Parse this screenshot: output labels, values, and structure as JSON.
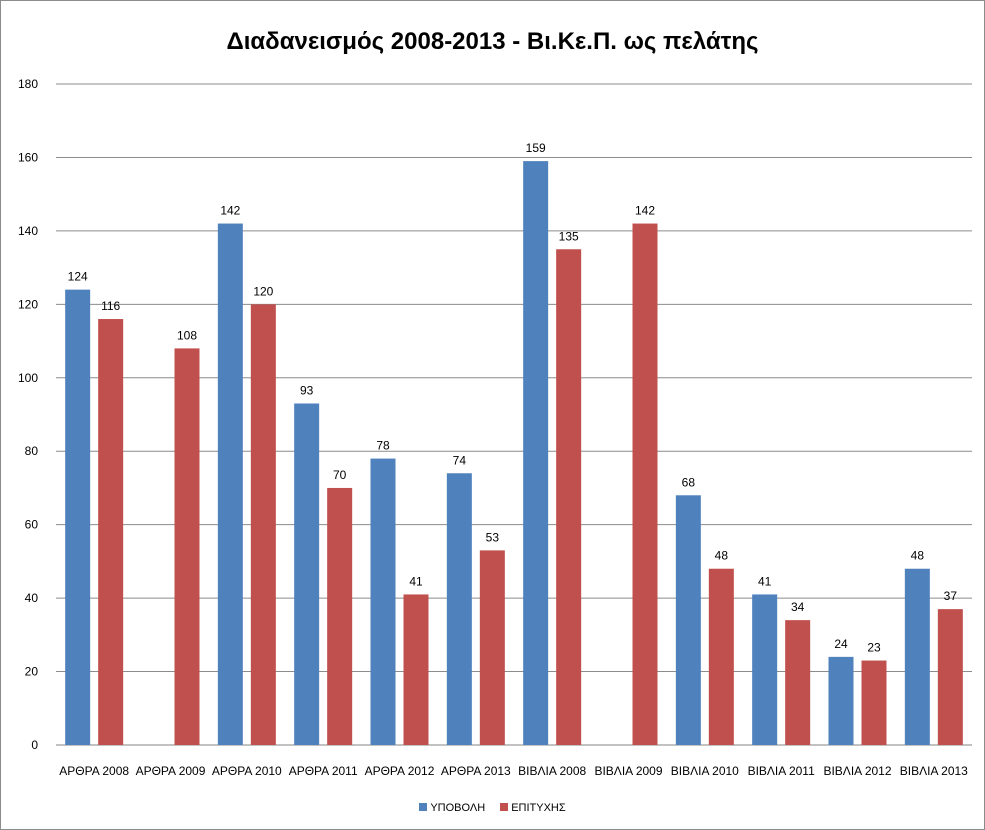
{
  "chart_data": {
    "type": "bar",
    "title": "Διαδανεισμός 2008-2013 - Βι.Κε.Π. ως πελάτης",
    "categories": [
      "ΑΡΘΡΑ 2008",
      "ΑΡΘΡΑ 2009",
      "ΑΡΘΡΑ 2010",
      "ΑΡΘΡΑ 2011",
      "ΑΡΘΡΑ 2012",
      "ΑΡΘΡΑ 2013",
      "ΒΙΒΛΙΑ 2008",
      "ΒΙΒΛΙΑ 2009",
      "ΒΙΒΛΙΑ 2010",
      "ΒΙΒΛΙΑ 2011",
      "ΒΙΒΛΙΑ 2012",
      "ΒΙΒΛΙΑ 2013"
    ],
    "series": [
      {
        "name": "ΥΠΟΒΟΛΗ",
        "color": "#4f81bd",
        "values": [
          124,
          null,
          142,
          93,
          78,
          74,
          159,
          null,
          68,
          41,
          24,
          48
        ]
      },
      {
        "name": "ΕΠΙΤΥΧΗΣ",
        "color": "#c0504d",
        "values": [
          116,
          108,
          120,
          70,
          41,
          53,
          135,
          142,
          48,
          34,
          23,
          37
        ]
      }
    ],
    "ylim": [
      0,
      180
    ],
    "yticks": [
      0,
      20,
      40,
      60,
      80,
      100,
      120,
      140,
      160,
      180
    ],
    "grid": true,
    "legend_position": "bottom"
  }
}
